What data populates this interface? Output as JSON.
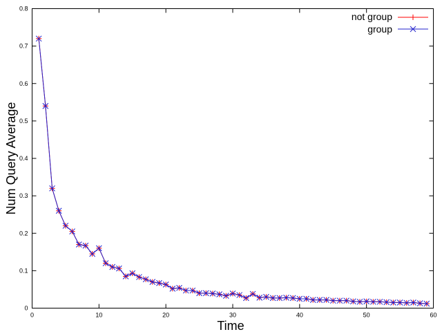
{
  "chart_data": {
    "type": "line",
    "title": "",
    "xlabel": "Time",
    "ylabel": "Num Query Average",
    "xlim": [
      0,
      60
    ],
    "ylim": [
      0,
      0.8
    ],
    "xticks": [
      0,
      10,
      20,
      30,
      40,
      50,
      60
    ],
    "yticks": [
      0,
      0.1,
      0.2,
      0.3,
      0.4,
      0.5,
      0.6,
      0.7,
      0.8
    ],
    "grid": false,
    "legend_position": "top-right",
    "x": [
      1,
      2,
      3,
      4,
      5,
      6,
      7,
      8,
      9,
      10,
      11,
      12,
      13,
      14,
      15,
      16,
      17,
      18,
      19,
      20,
      21,
      22,
      23,
      24,
      25,
      26,
      27,
      28,
      29,
      30,
      31,
      32,
      33,
      34,
      35,
      36,
      37,
      38,
      39,
      40,
      41,
      42,
      43,
      44,
      45,
      46,
      47,
      48,
      49,
      50,
      51,
      52,
      53,
      54,
      55,
      56,
      57,
      58,
      59
    ],
    "series": [
      {
        "name": "not group",
        "color": "#ff0000",
        "marker": "plus",
        "values": [
          0.72,
          0.54,
          0.32,
          0.26,
          0.22,
          0.205,
          0.17,
          0.167,
          0.145,
          0.16,
          0.12,
          0.11,
          0.106,
          0.085,
          0.093,
          0.083,
          0.077,
          0.07,
          0.067,
          0.063,
          0.052,
          0.054,
          0.047,
          0.047,
          0.04,
          0.04,
          0.039,
          0.037,
          0.033,
          0.039,
          0.035,
          0.027,
          0.038,
          0.028,
          0.03,
          0.027,
          0.027,
          0.028,
          0.027,
          0.025,
          0.025,
          0.022,
          0.022,
          0.022,
          0.02,
          0.02,
          0.02,
          0.018,
          0.017,
          0.018,
          0.017,
          0.017,
          0.016,
          0.015,
          0.015,
          0.014,
          0.015,
          0.013,
          0.012
        ]
      },
      {
        "name": "group",
        "color": "#2222cc",
        "marker": "x",
        "values": [
          0.72,
          0.54,
          0.32,
          0.26,
          0.22,
          0.205,
          0.17,
          0.167,
          0.145,
          0.16,
          0.12,
          0.11,
          0.106,
          0.085,
          0.093,
          0.083,
          0.077,
          0.07,
          0.067,
          0.063,
          0.052,
          0.054,
          0.047,
          0.047,
          0.04,
          0.04,
          0.039,
          0.037,
          0.033,
          0.039,
          0.035,
          0.027,
          0.038,
          0.028,
          0.03,
          0.027,
          0.027,
          0.028,
          0.027,
          0.025,
          0.025,
          0.022,
          0.022,
          0.022,
          0.02,
          0.02,
          0.02,
          0.018,
          0.017,
          0.018,
          0.017,
          0.017,
          0.016,
          0.015,
          0.015,
          0.014,
          0.015,
          0.013,
          0.012
        ]
      }
    ]
  }
}
